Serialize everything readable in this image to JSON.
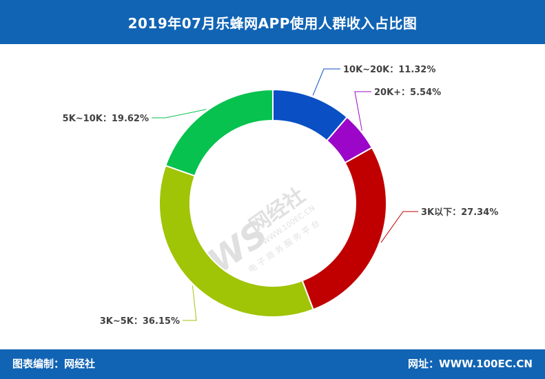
{
  "header": {
    "title": "2019年07月乐蜂网APP使用人群收入占比图"
  },
  "footer": {
    "left": "图表编制：网经社",
    "right": "网址：WWW.100EC.CN"
  },
  "watermark": {
    "logo": "WS",
    "name": "网经社",
    "url": "WWW.100EC.CN",
    "slogan": "电 子 商 务 服 务 平 台"
  },
  "chart_data": {
    "type": "pie",
    "style": "donut",
    "start_angle_deg": 0,
    "direction": "clockwise",
    "categories": [
      "10K~20K",
      "20K+",
      "3K以下",
      "3K~5K",
      "5K~10K"
    ],
    "values": [
      11.32,
      5.54,
      27.34,
      36.15,
      19.62
    ],
    "labels": [
      "10K~20K：11.32%",
      "20K+：5.54%",
      "3K以下：27.34%",
      "3K~5K：36.15%",
      "5K~10K：19.62%"
    ],
    "colors": [
      "#0a4fc4",
      "#9b06c9",
      "#c00000",
      "#a0c406",
      "#07c24e"
    ]
  }
}
